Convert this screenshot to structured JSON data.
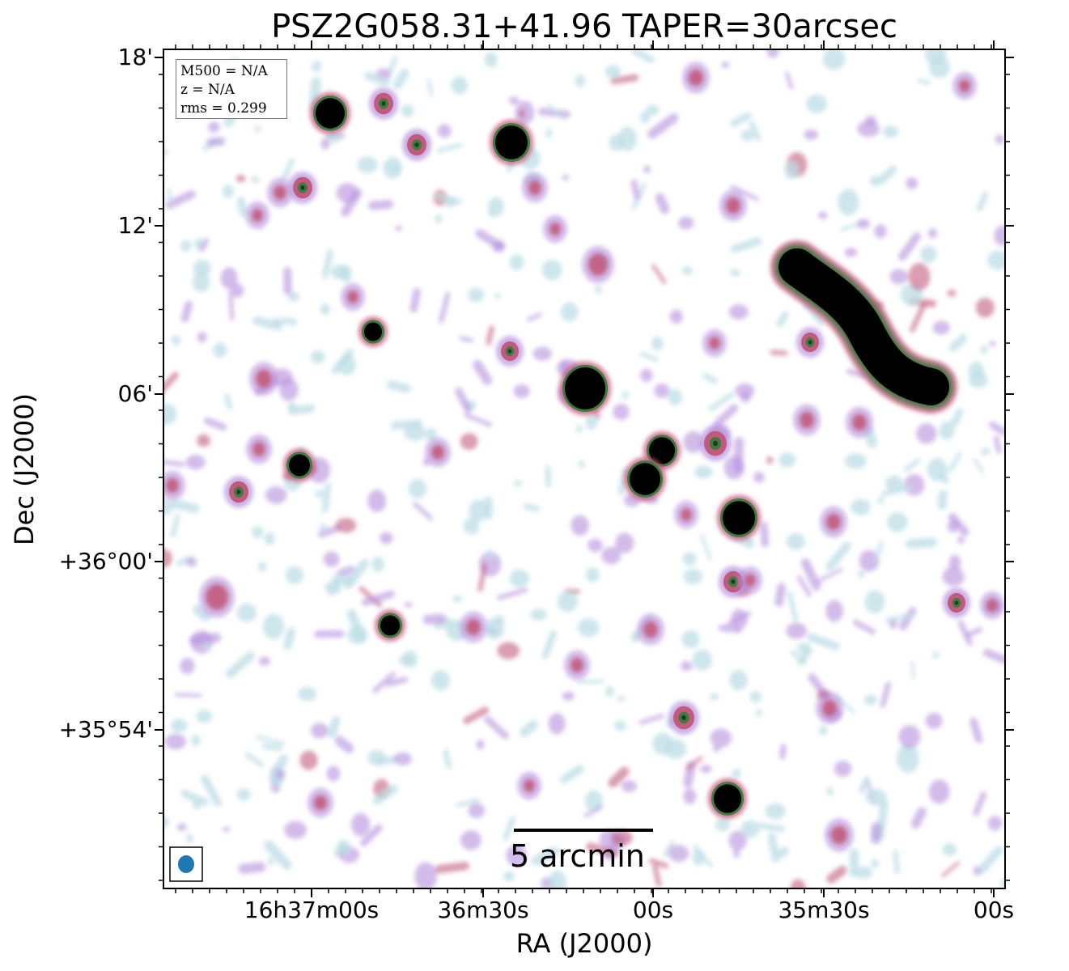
{
  "title": "PSZ2G058.31+41.96 TAPER=30arcsec",
  "axes": {
    "xlabel": "RA (J2000)",
    "ylabel": "Dec (J2000)",
    "x_ticks": [
      "16h37m00s",
      "36m30s",
      "00s",
      "35m30s",
      "00s"
    ],
    "y_ticks": [
      "18'",
      "12'",
      "06'",
      "+36°00'",
      "+35°54'"
    ]
  },
  "info": {
    "m500": "M500 = N/A",
    "z": "z = N/A",
    "rms": "rms = 0.299"
  },
  "scalebar": {
    "label": "5 arcmin"
  },
  "colors": {
    "faint": "#bcdde6",
    "low": "#b58fdc",
    "mid": "#c25a7d",
    "high": "#3f7a3f",
    "peak": "#000000",
    "beam": "#1f77b4"
  },
  "beam": {
    "shape": "ellipse"
  }
}
